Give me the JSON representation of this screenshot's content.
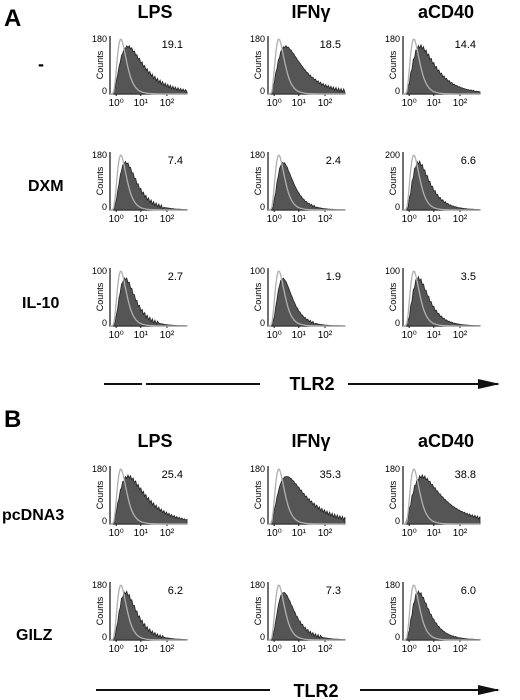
{
  "figure": {
    "x_axis_marker": "TLR2",
    "y_axis_label": "Counts",
    "x_tick_labels": [
      "10⁰",
      "10¹",
      "10²"
    ]
  },
  "panels": [
    {
      "letter": "A",
      "columns": [
        "LPS",
        "IFNγ",
        "aCD40"
      ],
      "rows": [
        {
          "label": "-",
          "ymax": [
            "180",
            "180",
            "180"
          ],
          "percent": [
            "19.1",
            "18.5",
            "14.4"
          ]
        },
        {
          "label": "DXM",
          "ymax": [
            "180",
            "180",
            "200"
          ],
          "percent": [
            "7.4",
            "2.4",
            "6.6"
          ]
        },
        {
          "label": "IL-10",
          "ymax": [
            "100",
            "100",
            "100"
          ],
          "percent": [
            "2.7",
            "1.9",
            "3.5"
          ]
        }
      ]
    },
    {
      "letter": "B",
      "columns": [
        "LPS",
        "IFNγ",
        "aCD40"
      ],
      "rows": [
        {
          "label": "pcDNA3",
          "ymax": [
            "180",
            "180",
            "180"
          ],
          "percent": [
            "25.4",
            "35.3",
            "38.8"
          ]
        },
        {
          "label": "GILZ",
          "ymax": [
            "180",
            "180",
            "180"
          ],
          "percent": [
            "6.2",
            "7.3",
            "6.0"
          ]
        }
      ]
    }
  ],
  "chart_data": {
    "type": "histogram-overlay",
    "x_scale": "log",
    "x_ticks": [
      "10⁰",
      "10¹",
      "10²"
    ],
    "ylabel": "Counts",
    "xlabel": "TLR2",
    "series_style": {
      "filled_color": "#555555",
      "outline_color": "#b0b0b0"
    },
    "plots": [
      {
        "panel": "A",
        "row": "-",
        "column": "LPS",
        "ymax": 180,
        "percent_positive": 19.1,
        "spread": 1.0
      },
      {
        "panel": "A",
        "row": "-",
        "column": "IFNγ",
        "ymax": 180,
        "percent_positive": 18.5,
        "spread": 1.0
      },
      {
        "panel": "A",
        "row": "-",
        "column": "aCD40",
        "ymax": 180,
        "percent_positive": 14.4,
        "spread": 0.9
      },
      {
        "panel": "A",
        "row": "DXM",
        "column": "LPS",
        "ymax": 180,
        "percent_positive": 7.4,
        "spread": 0.55
      },
      {
        "panel": "A",
        "row": "DXM",
        "column": "IFNγ",
        "ymax": 180,
        "percent_positive": 2.4,
        "spread": 0.45
      },
      {
        "panel": "A",
        "row": "DXM",
        "column": "aCD40",
        "ymax": 200,
        "percent_positive": 6.6,
        "spread": 0.55
      },
      {
        "panel": "A",
        "row": "IL-10",
        "column": "LPS",
        "ymax": 100,
        "percent_positive": 2.7,
        "spread": 0.45
      },
      {
        "panel": "A",
        "row": "IL-10",
        "column": "IFNγ",
        "ymax": 100,
        "percent_positive": 1.9,
        "spread": 0.4
      },
      {
        "panel": "A",
        "row": "IL-10",
        "column": "aCD40",
        "ymax": 100,
        "percent_positive": 3.5,
        "spread": 0.5
      },
      {
        "panel": "B",
        "row": "pcDNA3",
        "column": "LPS",
        "ymax": 180,
        "percent_positive": 25.4,
        "spread": 1.1
      },
      {
        "panel": "B",
        "row": "pcDNA3",
        "column": "IFNγ",
        "ymax": 180,
        "percent_positive": 35.3,
        "spread": 1.2
      },
      {
        "panel": "B",
        "row": "pcDNA3",
        "column": "aCD40",
        "ymax": 180,
        "percent_positive": 38.8,
        "spread": 1.25
      },
      {
        "panel": "B",
        "row": "GILZ",
        "column": "LPS",
        "ymax": 180,
        "percent_positive": 6.2,
        "spread": 0.55
      },
      {
        "panel": "B",
        "row": "GILZ",
        "column": "IFNγ",
        "ymax": 180,
        "percent_positive": 7.3,
        "spread": 0.55
      },
      {
        "panel": "B",
        "row": "GILZ",
        "column": "aCD40",
        "ymax": 180,
        "percent_positive": 6.0,
        "spread": 0.55
      }
    ]
  }
}
